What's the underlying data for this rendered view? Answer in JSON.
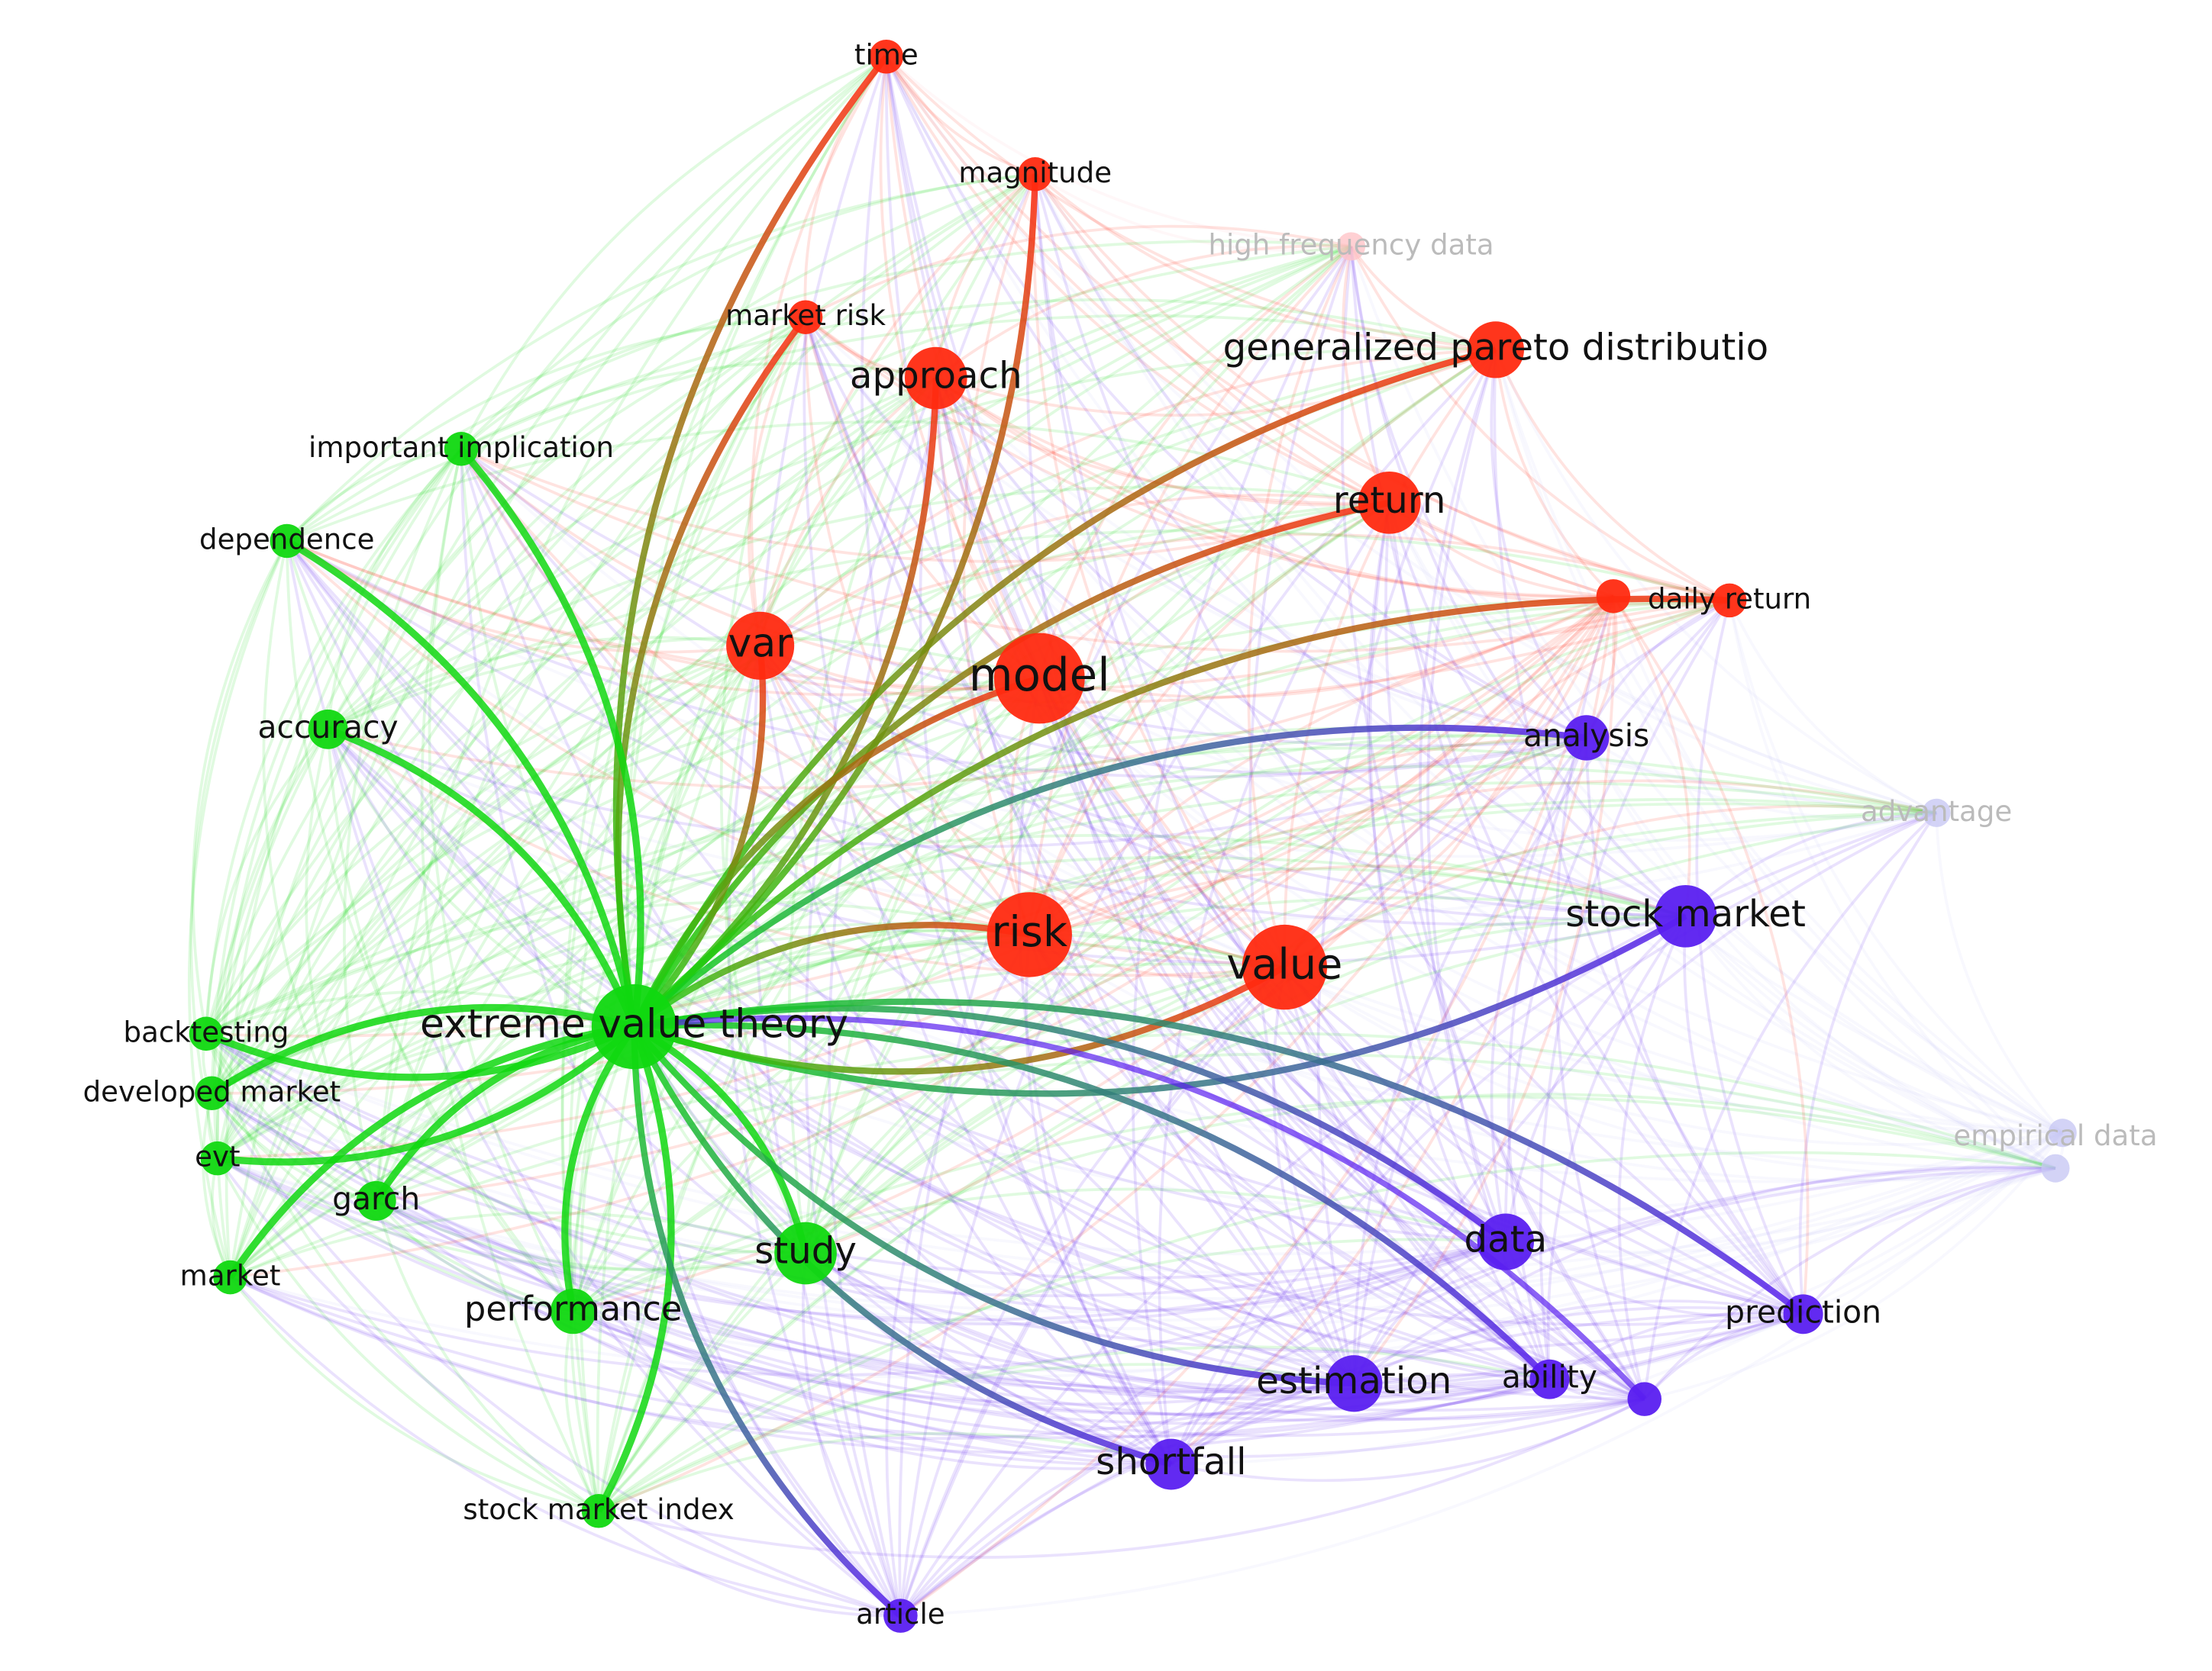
{
  "nodes": [
    {
      "label": "time"
    },
    {
      "label": "magnitude"
    },
    {
      "label": "high frequency data"
    },
    {
      "label": "market risk"
    },
    {
      "label": "approach"
    },
    {
      "label": "generalized pareto distributio"
    },
    {
      "label": "important implication"
    },
    {
      "label": "return"
    },
    {
      "label": "dependence"
    },
    {
      "label": "daily return"
    },
    {
      "label": "var"
    },
    {
      "label": "model"
    },
    {
      "label": "accuracy"
    },
    {
      "label": "analysis"
    },
    {
      "label": "advantage"
    },
    {
      "label": "stock market"
    },
    {
      "label": "risk"
    },
    {
      "label": "value"
    },
    {
      "label": "extreme value theory"
    },
    {
      "label": "backtesting"
    },
    {
      "label": "developed market"
    },
    {
      "label": "evt"
    },
    {
      "label": "empirical data"
    },
    {
      "label": "garch"
    },
    {
      "label": "study"
    },
    {
      "label": "market"
    },
    {
      "label": "data"
    },
    {
      "label": "performance"
    },
    {
      "label": "prediction"
    },
    {
      "label": "estimation"
    },
    {
      "label": "ability"
    },
    {
      "label": "shortfall"
    },
    {
      "label": "stock market index"
    },
    {
      "label": "article"
    }
  ]
}
